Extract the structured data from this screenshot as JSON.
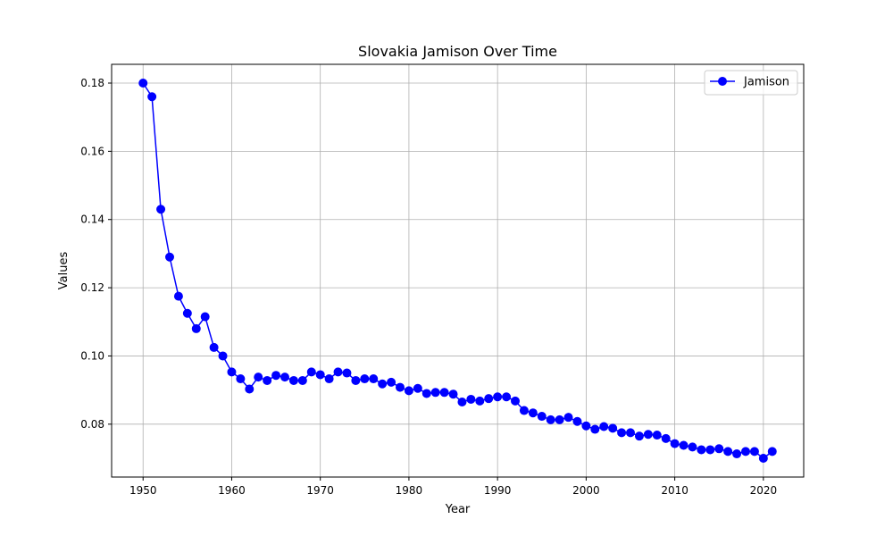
{
  "chart_data": {
    "type": "line",
    "title": "Slovakia Jamison Over Time",
    "xlabel": "Year",
    "ylabel": "Values",
    "xlim": [
      1946.45,
      2024.55
    ],
    "ylim": [
      0.0645,
      0.1855
    ],
    "xticks": [
      1950,
      1960,
      1970,
      1980,
      1990,
      2000,
      2010,
      2020
    ],
    "yticks": [
      0.08,
      0.1,
      0.12,
      0.14,
      0.16,
      0.18
    ],
    "ytick_labels": [
      "0.08",
      "0.10",
      "0.12",
      "0.14",
      "0.16",
      "0.18"
    ],
    "grid": true,
    "legend_position": "top-right",
    "series": [
      {
        "name": "Jamison",
        "color": "#0000ff",
        "marker": "circle",
        "x": [
          1950,
          1951,
          1952,
          1953,
          1954,
          1955,
          1956,
          1957,
          1958,
          1959,
          1960,
          1961,
          1962,
          1963,
          1964,
          1965,
          1966,
          1967,
          1968,
          1969,
          1970,
          1971,
          1972,
          1973,
          1974,
          1975,
          1976,
          1977,
          1978,
          1979,
          1980,
          1981,
          1982,
          1983,
          1984,
          1985,
          1986,
          1987,
          1988,
          1989,
          1990,
          1991,
          1992,
          1993,
          1994,
          1995,
          1996,
          1997,
          1998,
          1999,
          2000,
          2001,
          2002,
          2003,
          2004,
          2005,
          2006,
          2007,
          2008,
          2009,
          2010,
          2011,
          2012,
          2013,
          2014,
          2015,
          2016,
          2017,
          2018,
          2019,
          2020,
          2021
        ],
        "values": [
          0.18,
          0.176,
          0.143,
          0.129,
          0.1175,
          0.1125,
          0.108,
          0.1115,
          0.1025,
          0.1,
          0.0953,
          0.0933,
          0.0903,
          0.0938,
          0.0928,
          0.0943,
          0.0938,
          0.0928,
          0.0928,
          0.0953,
          0.0945,
          0.0933,
          0.0953,
          0.095,
          0.0928,
          0.0933,
          0.0933,
          0.0918,
          0.0923,
          0.0908,
          0.0898,
          0.0905,
          0.089,
          0.0893,
          0.0893,
          0.0888,
          0.0865,
          0.0873,
          0.0868,
          0.0875,
          0.088,
          0.088,
          0.0868,
          0.084,
          0.0833,
          0.0823,
          0.0813,
          0.0813,
          0.082,
          0.0808,
          0.0795,
          0.0785,
          0.0793,
          0.0788,
          0.0775,
          0.0775,
          0.0765,
          0.077,
          0.0768,
          0.0758,
          0.0743,
          0.0738,
          0.0733,
          0.0725,
          0.0725,
          0.0728,
          0.072,
          0.0713,
          0.072,
          0.072,
          0.07,
          0.072
        ]
      }
    ]
  }
}
